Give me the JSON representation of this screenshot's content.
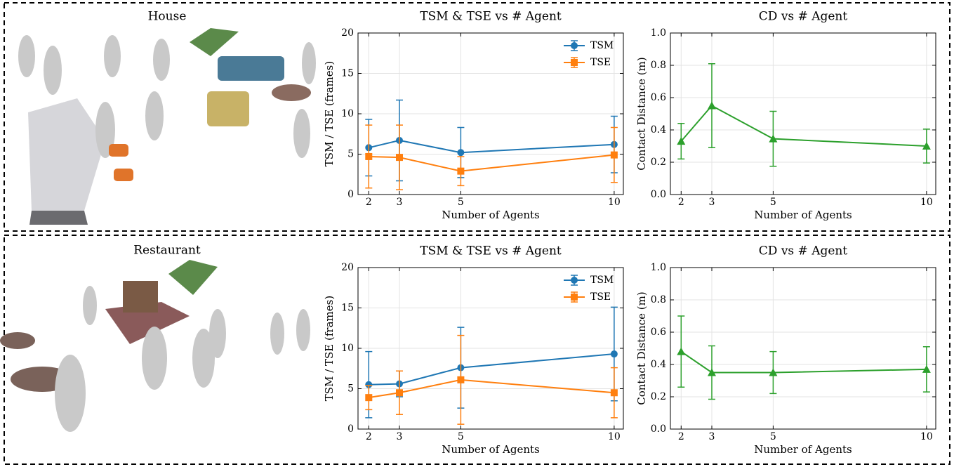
{
  "panels": [
    {
      "caption": "House"
    },
    {
      "caption": "Restaurant"
    }
  ],
  "chart_data": [
    {
      "type": "line",
      "title": "TSM & TSE vs # Agent",
      "xlabel": "Number of Agents",
      "ylabel": "TSM / TSE (frames)",
      "x": [
        2,
        3,
        5,
        10
      ],
      "xlim": [
        1.65,
        10.3
      ],
      "xticks": [
        2,
        3,
        5,
        10
      ],
      "ylim": [
        0,
        20
      ],
      "yticks": [
        0,
        5,
        10,
        15,
        20
      ],
      "grid": true,
      "legend": "upper right",
      "series": [
        {
          "name": "TSM",
          "color": "#1f77b4",
          "marker": "circle",
          "values": [
            5.8,
            6.7,
            5.2,
            6.2
          ],
          "errors": [
            3.5,
            5.0,
            3.1,
            3.5
          ]
        },
        {
          "name": "TSE",
          "color": "#ff7f0e",
          "marker": "square",
          "values": [
            4.7,
            4.6,
            2.9,
            4.9
          ],
          "errors": [
            3.9,
            4.0,
            1.8,
            3.4
          ]
        }
      ]
    },
    {
      "type": "line",
      "title": "CD vs # Agent",
      "xlabel": "Number of Agents",
      "ylabel": "Contact Distance (m)",
      "x": [
        2,
        3,
        5,
        10
      ],
      "xlim": [
        1.65,
        10.3
      ],
      "xticks": [
        2,
        3,
        5,
        10
      ],
      "ylim": [
        0,
        1
      ],
      "yticks": [
        {
          "value": 0,
          "label": "0.0"
        },
        0.2,
        0.4,
        0.6,
        0.8,
        {
          "value": 1,
          "label": "1.0"
        }
      ],
      "grid": true,
      "series": [
        {
          "color": "#2ca02c",
          "marker": "triangle",
          "values": [
            0.33,
            0.55,
            0.345,
            0.3
          ],
          "errors": [
            0.11,
            0.26,
            0.17,
            0.105
          ]
        }
      ]
    },
    {
      "type": "line",
      "title": "TSM & TSE vs # Agent",
      "xlabel": "Number of Agents",
      "ylabel": "TSM / TSE (frames)",
      "x": [
        2,
        3,
        5,
        10
      ],
      "xlim": [
        1.65,
        10.3
      ],
      "xticks": [
        2,
        3,
        5,
        10
      ],
      "ylim": [
        0,
        20
      ],
      "yticks": [
        0,
        5,
        10,
        15,
        20
      ],
      "grid": true,
      "legend": "upper right",
      "series": [
        {
          "name": "TSM",
          "color": "#1f77b4",
          "marker": "circle",
          "values": [
            5.5,
            5.6,
            7.6,
            9.3
          ],
          "errors": [
            4.1,
            1.6,
            5.0,
            5.8
          ]
        },
        {
          "name": "TSE",
          "color": "#ff7f0e",
          "marker": "square",
          "values": [
            3.9,
            4.5,
            6.1,
            4.5
          ],
          "errors": [
            1.5,
            2.7,
            5.5,
            3.1
          ]
        }
      ]
    },
    {
      "type": "line",
      "title": "CD vs # Agent",
      "xlabel": "Number of Agents",
      "ylabel": "Contact Distance (m)",
      "x": [
        2,
        3,
        5,
        10
      ],
      "xlim": [
        1.65,
        10.3
      ],
      "xticks": [
        2,
        3,
        5,
        10
      ],
      "ylim": [
        0,
        1
      ],
      "yticks": [
        {
          "value": 0,
          "label": "0.0"
        },
        0.2,
        0.4,
        0.6,
        0.8,
        {
          "value": 1,
          "label": "1.0"
        }
      ],
      "grid": true,
      "series": [
        {
          "color": "#2ca02c",
          "marker": "triangle",
          "values": [
            0.48,
            0.35,
            0.35,
            0.37
          ],
          "errors": [
            0.22,
            0.165,
            0.13,
            0.14
          ]
        }
      ]
    }
  ]
}
